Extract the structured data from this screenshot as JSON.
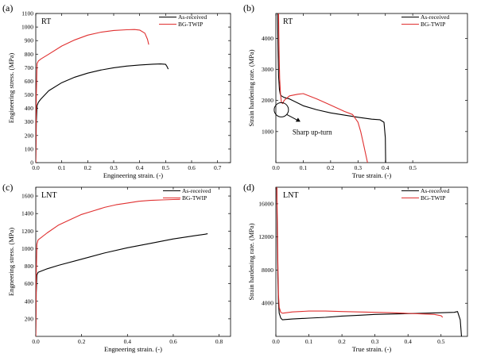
{
  "chart_data": [
    {
      "type": "line",
      "panel_label": "(a)",
      "condition": "RT",
      "xlabel": "Engineering strain. (-)",
      "ylabel": "Engineering stress. (MPa)",
      "xlim": [
        0,
        0.75
      ],
      "ylim": [
        0,
        1100
      ],
      "xticks": [
        "0.0",
        "0.1",
        "0.2",
        "0.3",
        "0.4",
        "0.5",
        "0.6",
        "0.7"
      ],
      "yticks": [
        "0",
        "100",
        "200",
        "300",
        "400",
        "500",
        "600",
        "700",
        "800",
        "900",
        "1000",
        "1100"
      ],
      "legend": [
        "As-received",
        "BG-TWIP"
      ],
      "legend_position": "top-right",
      "series": [
        {
          "name": "As-received",
          "color": "#000000",
          "x": [
            0,
            0.002,
            0.005,
            0.01,
            0.02,
            0.05,
            0.1,
            0.15,
            0.2,
            0.25,
            0.3,
            0.35,
            0.4,
            0.45,
            0.48,
            0.5,
            0.505,
            0.51
          ],
          "y": [
            0,
            300,
            420,
            445,
            470,
            530,
            590,
            630,
            660,
            683,
            700,
            712,
            720,
            726,
            728,
            725,
            710,
            690
          ]
        },
        {
          "name": "BG-TWIP",
          "color": "#e03030",
          "x": [
            0,
            0.002,
            0.005,
            0.01,
            0.02,
            0.05,
            0.1,
            0.15,
            0.2,
            0.25,
            0.3,
            0.35,
            0.38,
            0.4,
            0.42,
            0.43,
            0.435
          ],
          "y": [
            0,
            500,
            730,
            750,
            765,
            800,
            860,
            905,
            940,
            962,
            975,
            980,
            982,
            978,
            955,
            910,
            870
          ]
        }
      ]
    },
    {
      "type": "line",
      "panel_label": "(b)",
      "condition": "RT",
      "xlabel": "True strain. (-)",
      "ylabel": "Strain hardening rate. (MPa)",
      "xlim": [
        0,
        0.7
      ],
      "ylim": [
        0,
        4800
      ],
      "xticks": [
        "0.0",
        "0.1",
        "0.2",
        "0.3",
        "0.4",
        "0.5"
      ],
      "yticks": [
        "1000",
        "2000",
        "3000",
        "4000"
      ],
      "annotation": "Sharp up-turn",
      "legend": [
        "As-received",
        "BG-TWIP"
      ],
      "legend_position": "top-right",
      "series": [
        {
          "name": "As-received",
          "color": "#000000",
          "x": [
            0.006,
            0.008,
            0.01,
            0.013,
            0.016,
            0.02,
            0.03,
            0.05,
            0.1,
            0.15,
            0.2,
            0.25,
            0.3,
            0.35,
            0.38,
            0.395,
            0.4,
            0.401
          ],
          "y": [
            4800,
            3600,
            2800,
            2350,
            2200,
            2150,
            2100,
            2050,
            1830,
            1700,
            1600,
            1530,
            1460,
            1400,
            1380,
            1300,
            800,
            0
          ]
        },
        {
          "name": "BG-TWIP",
          "color": "#e03030",
          "x": [
            0.01,
            0.012,
            0.014,
            0.017,
            0.02,
            0.025,
            0.03,
            0.05,
            0.08,
            0.1,
            0.15,
            0.2,
            0.25,
            0.28,
            0.3,
            0.31,
            0.32,
            0.33,
            0.335
          ],
          "y": [
            4800,
            3500,
            2700,
            2200,
            1950,
            1900,
            2000,
            2150,
            2200,
            2220,
            2050,
            1850,
            1650,
            1550,
            1300,
            1000,
            600,
            200,
            0
          ]
        }
      ]
    },
    {
      "type": "line",
      "panel_label": "(c)",
      "condition": "LNT",
      "xlabel": "Engneering strain. (-)",
      "ylabel": "Engneering stress. (MPa)",
      "xlim": [
        0,
        0.85
      ],
      "ylim": [
        0,
        1700
      ],
      "xticks": [
        "0.0",
        "0.2",
        "0.4",
        "0.6",
        "0.8"
      ],
      "yticks": [
        "200",
        "400",
        "600",
        "800",
        "1000",
        "1200",
        "1400",
        "1600"
      ],
      "legend": [
        "As-received",
        "BG-TWIP"
      ],
      "legend_position": "top-right",
      "series": [
        {
          "name": "As-received",
          "color": "#000000",
          "x": [
            0,
            0.002,
            0.005,
            0.01,
            0.05,
            0.1,
            0.2,
            0.3,
            0.4,
            0.5,
            0.6,
            0.7,
            0.74,
            0.75
          ],
          "y": [
            0,
            500,
            700,
            730,
            770,
            810,
            880,
            950,
            1010,
            1060,
            1110,
            1150,
            1165,
            1170
          ]
        },
        {
          "name": "BG-TWIP",
          "color": "#e03030",
          "x": [
            0,
            0.002,
            0.005,
            0.01,
            0.05,
            0.1,
            0.15,
            0.2,
            0.25,
            0.3,
            0.35,
            0.4,
            0.45,
            0.5,
            0.55,
            0.6,
            0.63
          ],
          "y": [
            0,
            700,
            1050,
            1100,
            1180,
            1270,
            1330,
            1390,
            1430,
            1470,
            1500,
            1520,
            1540,
            1550,
            1555,
            1560,
            1562
          ]
        }
      ]
    },
    {
      "type": "line",
      "panel_label": "(d)",
      "condition": "LNT",
      "xlabel": "True strain. (-)",
      "ylabel": "Strain hardening rate. (MPa)",
      "xlim": [
        0,
        0.58
      ],
      "ylim": [
        0,
        18000
      ],
      "xticks": [
        "0.0",
        "0.1",
        "0.2",
        "0.3",
        "0.4",
        "0.5"
      ],
      "yticks": [
        "4000",
        "8000",
        "12000",
        "16000"
      ],
      "legend": [
        "As-received",
        "BG-TWIP"
      ],
      "legend_position": "top-right",
      "series": [
        {
          "name": "As-received",
          "color": "#000000",
          "x": [
            0.003,
            0.004,
            0.006,
            0.008,
            0.01,
            0.015,
            0.02,
            0.05,
            0.1,
            0.15,
            0.2,
            0.25,
            0.3,
            0.35,
            0.4,
            0.45,
            0.5,
            0.54,
            0.55,
            0.558,
            0.562
          ],
          "y": [
            18000,
            12000,
            7000,
            4000,
            2800,
            2200,
            2000,
            2100,
            2200,
            2300,
            2450,
            2550,
            2650,
            2700,
            2750,
            2800,
            2850,
            2900,
            3000,
            2000,
            0
          ]
        },
        {
          "name": "BG-TWIP",
          "color": "#e03030",
          "x": [
            0.003,
            0.004,
            0.006,
            0.008,
            0.01,
            0.015,
            0.02,
            0.05,
            0.1,
            0.15,
            0.2,
            0.25,
            0.3,
            0.35,
            0.4,
            0.45,
            0.48,
            0.5,
            0.505
          ],
          "y": [
            18000,
            15000,
            9000,
            5000,
            3500,
            2900,
            2800,
            2950,
            3050,
            3050,
            3000,
            2950,
            2900,
            2850,
            2780,
            2700,
            2650,
            2500,
            2300
          ]
        }
      ]
    }
  ]
}
